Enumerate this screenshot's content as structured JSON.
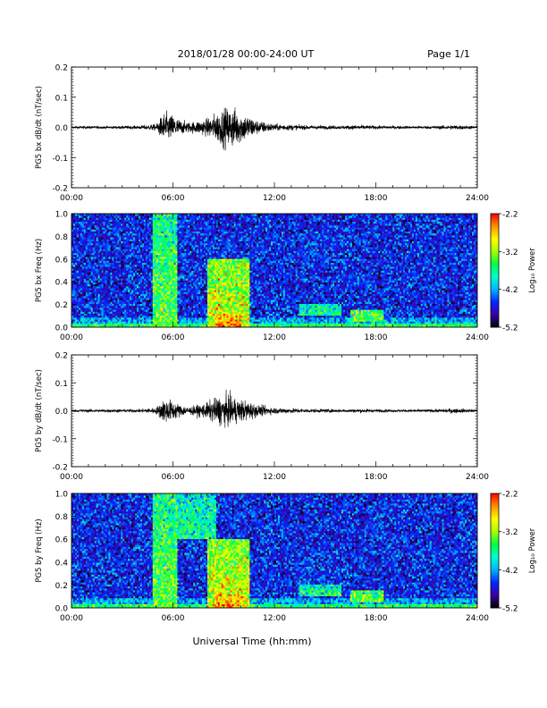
{
  "header": {
    "title": "2018/01/28  00:00-24:00 UT",
    "page": "Page 1/1"
  },
  "footer": {
    "xlabel": "Universal Time (hh:mm)"
  },
  "colorbar": {
    "label": "Log₁₀ Power",
    "ticks": [
      "-2.2",
      "-3.2",
      "-4.2",
      "-5.2"
    ],
    "range": [
      -5.2,
      -2.2
    ],
    "colors": [
      "#000000",
      "#3a00a8",
      "#0028ff",
      "#00b4ff",
      "#00ffd0",
      "#00ff40",
      "#a8ff00",
      "#ffff00",
      "#ff9000",
      "#ff0000"
    ]
  },
  "chart_data": [
    {
      "type": "line",
      "ylabel": "PG5 bx dB/dt (nT/sec)",
      "x_ticks": [
        "00:00",
        "06:00",
        "12:00",
        "18:00",
        "24:00"
      ],
      "y_ticks": [
        "0.2",
        "0.1",
        "0.0",
        "-0.1",
        "-0.2"
      ],
      "xlim": [
        0,
        24
      ],
      "ylim": [
        -0.2,
        0.2
      ],
      "line_color": "#000000",
      "envelope": {
        "x": [
          0,
          2,
          4,
          5,
          5.5,
          6,
          6.5,
          7,
          8,
          8.5,
          9,
          9.5,
          10,
          10.5,
          11,
          12,
          14,
          16,
          17,
          18,
          20,
          22,
          22.5,
          24
        ],
        "amplitude": [
          0.004,
          0.004,
          0.005,
          0.01,
          0.045,
          0.035,
          0.02,
          0.015,
          0.025,
          0.04,
          0.055,
          0.06,
          0.045,
          0.035,
          0.02,
          0.01,
          0.006,
          0.005,
          0.007,
          0.005,
          0.004,
          0.005,
          0.007,
          0.004
        ]
      }
    },
    {
      "type": "heatmap",
      "ylabel": "PG5 bx Freq (Hz)",
      "x_ticks": [
        "00:00",
        "06:00",
        "12:00",
        "18:00",
        "24:00"
      ],
      "y_ticks": [
        "1.0",
        "0.8",
        "0.6",
        "0.4",
        "0.2",
        "0.0"
      ],
      "xlim": [
        0,
        24
      ],
      "ylim": [
        0,
        1
      ],
      "zlim": [
        -5.2,
        -2.2
      ],
      "background_log_power": -4.6,
      "features": [
        {
          "t": [
            4.8,
            6.3
          ],
          "f": [
            0,
            1.0
          ],
          "peak": -3.4
        },
        {
          "t": [
            8.0,
            10.5
          ],
          "f": [
            0,
            0.6
          ],
          "peak": -3.0
        },
        {
          "t": [
            8.5,
            10.0
          ],
          "f": [
            0,
            0.12
          ],
          "peak": -2.5
        },
        {
          "t": [
            13.5,
            16.0
          ],
          "f": [
            0.1,
            0.2
          ],
          "peak": -3.6
        },
        {
          "t": [
            16.5,
            18.5
          ],
          "f": [
            0.05,
            0.15
          ],
          "peak": -3.3
        }
      ]
    },
    {
      "type": "line",
      "ylabel": "PG5 by dB/dt (nT/sec)",
      "x_ticks": [
        "00:00",
        "06:00",
        "12:00",
        "18:00",
        "24:00"
      ],
      "y_ticks": [
        "0.2",
        "0.1",
        "0.0",
        "-0.1",
        "-0.2"
      ],
      "xlim": [
        0,
        24
      ],
      "ylim": [
        -0.2,
        0.2
      ],
      "line_color": "#000000",
      "envelope": {
        "x": [
          0,
          2,
          4,
          5,
          5.5,
          6,
          6.5,
          7,
          8,
          8.5,
          9,
          9.5,
          10,
          10.5,
          11,
          12,
          14,
          16,
          17,
          18,
          20,
          22,
          22.5,
          24
        ],
        "amplitude": [
          0.004,
          0.005,
          0.005,
          0.01,
          0.04,
          0.03,
          0.018,
          0.012,
          0.025,
          0.04,
          0.05,
          0.045,
          0.035,
          0.03,
          0.018,
          0.01,
          0.006,
          0.005,
          0.006,
          0.005,
          0.004,
          0.005,
          0.008,
          0.004
        ]
      }
    },
    {
      "type": "heatmap",
      "ylabel": "PG5 by Freq (Hz)",
      "x_ticks": [
        "00:00",
        "06:00",
        "12:00",
        "18:00",
        "24:00"
      ],
      "y_ticks": [
        "1.0",
        "0.8",
        "0.6",
        "0.4",
        "0.2",
        "0.0"
      ],
      "xlim": [
        0,
        24
      ],
      "ylim": [
        0,
        1
      ],
      "zlim": [
        -5.2,
        -2.2
      ],
      "background_log_power": -4.6,
      "features": [
        {
          "t": [
            4.8,
            6.3
          ],
          "f": [
            0,
            1.0
          ],
          "peak": -3.4
        },
        {
          "t": [
            6.3,
            8.6
          ],
          "f": [
            0.6,
            1.0
          ],
          "peak": -3.7
        },
        {
          "t": [
            8.0,
            10.5
          ],
          "f": [
            0,
            0.6
          ],
          "peak": -3.0
        },
        {
          "t": [
            8.5,
            10.0
          ],
          "f": [
            0,
            0.12
          ],
          "peak": -2.5
        },
        {
          "t": [
            13.5,
            16.0
          ],
          "f": [
            0.1,
            0.2
          ],
          "peak": -3.6
        },
        {
          "t": [
            16.5,
            18.5
          ],
          "f": [
            0.05,
            0.15
          ],
          "peak": -3.3
        }
      ]
    }
  ]
}
